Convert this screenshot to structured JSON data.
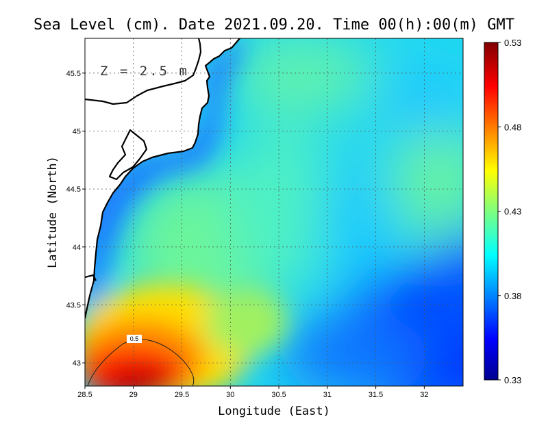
{
  "title": "Sea Level (cm). Date 2021.09.20. Time 00(h):00(m) GMT",
  "depth_label": "Z = 2.5 m",
  "chart_data": {
    "type": "heatmap",
    "title": "Sea Level (cm). Date 2021.09.20. Time 00(h):00(m) GMT",
    "xlabel": "Longitude (East)",
    "ylabel": "Latitude (North)",
    "xlim": [
      28.5,
      32.4
    ],
    "ylim": [
      42.8,
      45.8
    ],
    "xticks": [
      {
        "value": 28.5,
        "label": "28.5"
      },
      {
        "value": 29,
        "label": "29"
      },
      {
        "value": 29.5,
        "label": "29.5"
      },
      {
        "value": 30,
        "label": "30"
      },
      {
        "value": 30.5,
        "label": "30.5"
      },
      {
        "value": 31,
        "label": "31"
      },
      {
        "value": 31.5,
        "label": "31.5"
      },
      {
        "value": 32,
        "label": "32"
      }
    ],
    "yticks": [
      {
        "value": 43,
        "label": "43"
      },
      {
        "value": 43.5,
        "label": "43.5"
      },
      {
        "value": 44,
        "label": "44"
      },
      {
        "value": 44.5,
        "label": "44.5"
      },
      {
        "value": 45,
        "label": "45"
      },
      {
        "value": 45.5,
        "label": "45.5"
      }
    ],
    "grid": true,
    "colorbar": {
      "min": 0.33,
      "max": 0.53,
      "ticks": [
        {
          "value": 0.53,
          "label": "0.53"
        },
        {
          "value": 0.48,
          "label": "0.48"
        },
        {
          "value": 0.43,
          "label": "0.43"
        },
        {
          "value": 0.38,
          "label": "0.38"
        },
        {
          "value": 0.33,
          "label": "0.33"
        }
      ],
      "colormap": "jet"
    },
    "contour": {
      "level": 0.5,
      "label": "0.5"
    },
    "field_samples": [
      {
        "lon": 29.05,
        "lat": 42.85,
        "value": 0.53
      },
      {
        "lon": 29.2,
        "lat": 43.05,
        "value": 0.51
      },
      {
        "lon": 29.6,
        "lat": 43.2,
        "value": 0.47
      },
      {
        "lon": 28.6,
        "lat": 43.15,
        "value": 0.49
      },
      {
        "lon": 30.1,
        "lat": 43.1,
        "value": 0.45
      },
      {
        "lon": 29.2,
        "lat": 44.2,
        "value": 0.44
      },
      {
        "lon": 30.3,
        "lat": 43.8,
        "value": 0.425
      },
      {
        "lon": 30.8,
        "lat": 44.9,
        "value": 0.41
      },
      {
        "lon": 31.2,
        "lat": 43.5,
        "value": 0.39
      },
      {
        "lon": 32.1,
        "lat": 43.1,
        "value": 0.34
      },
      {
        "lon": 31.7,
        "lat": 42.95,
        "value": 0.35
      },
      {
        "lon": 32.0,
        "lat": 44.8,
        "value": 0.42
      },
      {
        "lon": 30.8,
        "lat": 45.6,
        "value": 0.43
      },
      {
        "lon": 29.2,
        "lat": 45.0,
        "value": 0.37
      },
      {
        "lon": 28.7,
        "lat": 44.0,
        "value": 0.37
      }
    ]
  }
}
